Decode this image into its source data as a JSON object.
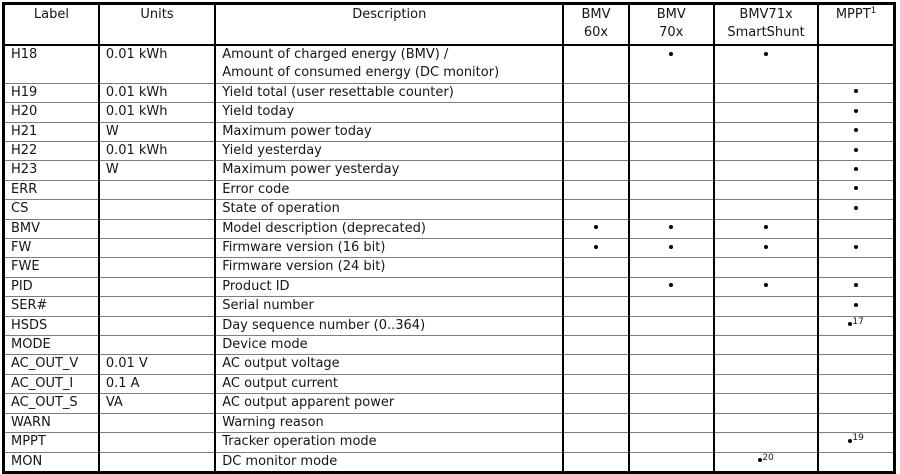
{
  "table": {
    "header": {
      "label": "Label",
      "units": "Units",
      "description": "Description",
      "device_cols": [
        {
          "line1": "BMV",
          "line2": "60x",
          "sup": ""
        },
        {
          "line1": "BMV",
          "line2": "70x",
          "sup": ""
        },
        {
          "line1": "BMV71x",
          "line2": "SmartShunt",
          "sup": ""
        },
        {
          "line1": "MPPT",
          "line2": "",
          "sup": "1"
        }
      ]
    },
    "rows": [
      {
        "label": "H18",
        "units": "0.01 kWh",
        "desc": [
          "Amount of charged energy (BMV) /",
          "Amount of consumed energy (DC monitor)"
        ],
        "marks": [
          {
            "d": "",
            "s": ""
          },
          {
            "d": "dot",
            "s": ""
          },
          {
            "d": "dot",
            "s": ""
          },
          {
            "d": "",
            "s": ""
          }
        ]
      },
      {
        "label": "H19",
        "units": "0.01 kWh",
        "desc": [
          "Yield total (user resettable counter)"
        ],
        "marks": [
          {
            "d": "",
            "s": ""
          },
          {
            "d": "",
            "s": ""
          },
          {
            "d": "",
            "s": ""
          },
          {
            "d": "dot",
            "s": ""
          }
        ]
      },
      {
        "label": "H20",
        "units": "0.01 kWh",
        "desc": [
          "Yield today"
        ],
        "marks": [
          {
            "d": "",
            "s": ""
          },
          {
            "d": "",
            "s": ""
          },
          {
            "d": "",
            "s": ""
          },
          {
            "d": "dot",
            "s": ""
          }
        ]
      },
      {
        "label": "H21",
        "units": "W",
        "desc": [
          "Maximum power today"
        ],
        "marks": [
          {
            "d": "",
            "s": ""
          },
          {
            "d": "",
            "s": ""
          },
          {
            "d": "",
            "s": ""
          },
          {
            "d": "dot",
            "s": ""
          }
        ]
      },
      {
        "label": "H22",
        "units": "0.01 kWh",
        "desc": [
          "Yield yesterday"
        ],
        "marks": [
          {
            "d": "",
            "s": ""
          },
          {
            "d": "",
            "s": ""
          },
          {
            "d": "",
            "s": ""
          },
          {
            "d": "dot",
            "s": ""
          }
        ]
      },
      {
        "label": "H23",
        "units": "W",
        "desc": [
          "Maximum power yesterday"
        ],
        "marks": [
          {
            "d": "",
            "s": ""
          },
          {
            "d": "",
            "s": ""
          },
          {
            "d": "",
            "s": ""
          },
          {
            "d": "dot",
            "s": ""
          }
        ]
      },
      {
        "label": "ERR",
        "units": "",
        "desc": [
          "Error code"
        ],
        "marks": [
          {
            "d": "",
            "s": ""
          },
          {
            "d": "",
            "s": ""
          },
          {
            "d": "",
            "s": ""
          },
          {
            "d": "dot",
            "s": ""
          }
        ]
      },
      {
        "label": "CS",
        "units": "",
        "desc": [
          "State of operation"
        ],
        "marks": [
          {
            "d": "",
            "s": ""
          },
          {
            "d": "",
            "s": ""
          },
          {
            "d": "",
            "s": ""
          },
          {
            "d": "dot",
            "s": ""
          }
        ]
      },
      {
        "label": "BMV",
        "units": "",
        "desc": [
          "Model description (deprecated)"
        ],
        "marks": [
          {
            "d": "dot",
            "s": ""
          },
          {
            "d": "dot",
            "s": ""
          },
          {
            "d": "dot",
            "s": ""
          },
          {
            "d": "",
            "s": ""
          }
        ]
      },
      {
        "label": "FW",
        "units": "",
        "desc": [
          "Firmware version (16 bit)"
        ],
        "marks": [
          {
            "d": "dot",
            "s": ""
          },
          {
            "d": "dot",
            "s": ""
          },
          {
            "d": "dot",
            "s": ""
          },
          {
            "d": "dot",
            "s": ""
          }
        ]
      },
      {
        "label": "FWE",
        "units": "",
        "desc": [
          "Firmware version (24 bit)"
        ],
        "marks": [
          {
            "d": "",
            "s": ""
          },
          {
            "d": "",
            "s": ""
          },
          {
            "d": "",
            "s": ""
          },
          {
            "d": "",
            "s": ""
          }
        ]
      },
      {
        "label": "PID",
        "units": "",
        "desc": [
          "Product ID"
        ],
        "marks": [
          {
            "d": "",
            "s": ""
          },
          {
            "d": "dot",
            "s": ""
          },
          {
            "d": "dot",
            "s": ""
          },
          {
            "d": "dot",
            "s": ""
          }
        ]
      },
      {
        "label": "SER#",
        "units": "",
        "desc": [
          "Serial number"
        ],
        "marks": [
          {
            "d": "",
            "s": ""
          },
          {
            "d": "",
            "s": ""
          },
          {
            "d": "",
            "s": ""
          },
          {
            "d": "dot",
            "s": ""
          }
        ]
      },
      {
        "label": "HSDS",
        "units": "",
        "desc": [
          "Day sequence number (0..364)"
        ],
        "marks": [
          {
            "d": "",
            "s": ""
          },
          {
            "d": "",
            "s": ""
          },
          {
            "d": "",
            "s": ""
          },
          {
            "d": "dot",
            "s": "17"
          }
        ]
      },
      {
        "label": "MODE",
        "units": "",
        "desc": [
          "Device mode"
        ],
        "marks": [
          {
            "d": "",
            "s": ""
          },
          {
            "d": "",
            "s": ""
          },
          {
            "d": "",
            "s": ""
          },
          {
            "d": "",
            "s": ""
          }
        ]
      },
      {
        "label": "AC_OUT_V",
        "units": "0.01 V",
        "desc": [
          "AC output voltage"
        ],
        "marks": [
          {
            "d": "",
            "s": ""
          },
          {
            "d": "",
            "s": ""
          },
          {
            "d": "",
            "s": ""
          },
          {
            "d": "",
            "s": ""
          }
        ]
      },
      {
        "label": "AC_OUT_I",
        "units": "0.1 A",
        "desc": [
          "AC output current"
        ],
        "marks": [
          {
            "d": "",
            "s": ""
          },
          {
            "d": "",
            "s": ""
          },
          {
            "d": "",
            "s": ""
          },
          {
            "d": "",
            "s": ""
          }
        ]
      },
      {
        "label": "AC_OUT_S",
        "units": "VA",
        "desc": [
          "AC output apparent power"
        ],
        "marks": [
          {
            "d": "",
            "s": ""
          },
          {
            "d": "",
            "s": ""
          },
          {
            "d": "",
            "s": ""
          },
          {
            "d": "",
            "s": ""
          }
        ]
      },
      {
        "label": "WARN",
        "units": "",
        "desc": [
          "Warning reason"
        ],
        "marks": [
          {
            "d": "",
            "s": ""
          },
          {
            "d": "",
            "s": ""
          },
          {
            "d": "",
            "s": ""
          },
          {
            "d": "",
            "s": ""
          }
        ]
      },
      {
        "label": "MPPT",
        "units": "",
        "desc": [
          "Tracker operation mode"
        ],
        "marks": [
          {
            "d": "",
            "s": ""
          },
          {
            "d": "",
            "s": ""
          },
          {
            "d": "",
            "s": ""
          },
          {
            "d": "dot",
            "s": "19"
          }
        ]
      },
      {
        "label": "MON",
        "units": "",
        "desc": [
          "DC monitor mode"
        ],
        "marks": [
          {
            "d": "",
            "s": ""
          },
          {
            "d": "",
            "s": ""
          },
          {
            "d": "dot",
            "s": "20"
          },
          {
            "d": "",
            "s": ""
          }
        ]
      }
    ]
  },
  "colors": {
    "outer_border": "#000000",
    "column_border": "#000000",
    "row_line": "#7e7e7e",
    "text": "#161616",
    "background": "#ffffff"
  }
}
